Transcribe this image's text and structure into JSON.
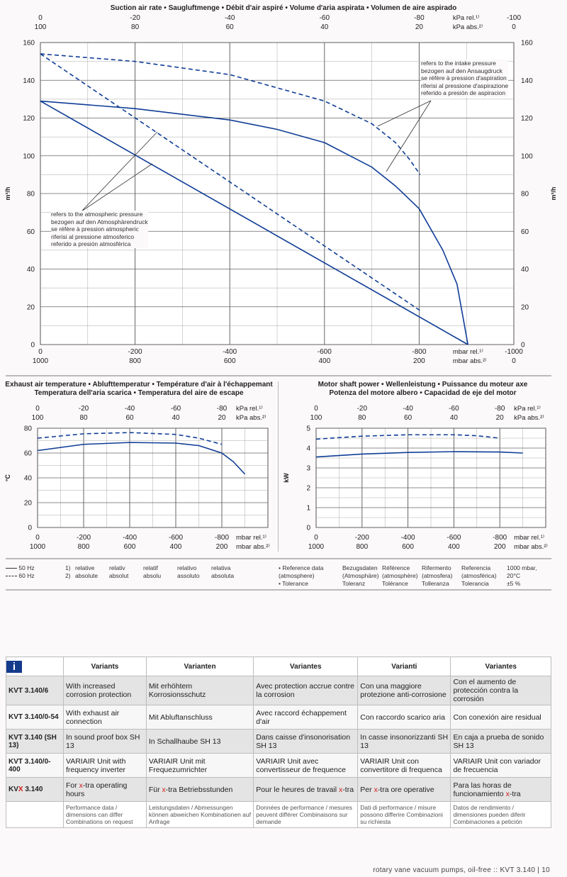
{
  "main_title": "Suction air rate • Saugluftmenge • Débit d'air aspiré • Volume d'aria aspirata • Volumen de aire aspirado",
  "temp_title": [
    "Exhaust air temperature • Ablufttemperatur • Température d'air à l'échappemant",
    "Temperatura dell'aria scarica • Temperatura del aire de escape"
  ],
  "power_title": [
    "Motor shaft power • Wellenleistung • Puissance du moteur axe",
    "Potenza del motore albero • Capacidad de eje del motor"
  ],
  "colors": {
    "curve": "#0f3d96",
    "grid": "#a9a9a9"
  },
  "chart_data": [
    {
      "id": "suction",
      "type": "line",
      "ylabel": "m³/h",
      "xlim": [
        0,
        -1000
      ],
      "ylim": [
        0,
        160
      ],
      "yticks": [
        0,
        20,
        40,
        60,
        80,
        100,
        120,
        140,
        160
      ],
      "x_bottom_ticks": {
        "rel": [
          "0",
          "-200",
          "-400",
          "-600",
          "-800",
          "-1000"
        ],
        "abs": [
          "1000",
          "800",
          "600",
          "400",
          "200",
          "0"
        ],
        "rel_unit": "mbar rel.¹⁾",
        "abs_unit": "mbar abs.²⁾"
      },
      "x_top_ticks": {
        "rel": [
          "0",
          "-20",
          "-40",
          "-60",
          "-80",
          "-100"
        ],
        "abs": [
          "100",
          "80",
          "60",
          "40",
          "20",
          "0"
        ],
        "rel_unit": "kPa rel.¹⁾",
        "abs_unit": "kPa abs.²⁾"
      },
      "grid": true,
      "series": [
        {
          "freq": "50 Hz",
          "style": "solid",
          "ref": "intake",
          "x": [
            0,
            -200,
            -400,
            -500,
            -600,
            -700,
            -750,
            -800,
            -850,
            -880,
            -903
          ],
          "y": [
            129,
            125,
            119,
            114,
            107,
            94,
            84,
            72,
            50,
            32,
            0
          ]
        },
        {
          "freq": "50 Hz",
          "style": "solid",
          "ref": "atmospheric",
          "x": [
            0,
            -903
          ],
          "y": [
            129,
            0
          ]
        },
        {
          "freq": "60 Hz",
          "style": "dashed",
          "ref": "intake",
          "x": [
            0,
            -200,
            -400,
            -600,
            -700,
            -750,
            -780,
            -802
          ],
          "y": [
            154,
            150,
            143,
            129,
            117,
            107,
            98,
            90
          ]
        },
        {
          "freq": "60 Hz",
          "style": "dashed",
          "ref": "atmospheric",
          "x": [
            0,
            -802
          ],
          "y": [
            154,
            18
          ]
        }
      ],
      "annotations": {
        "intake": [
          "refers to the intake pressure",
          "bezogen auf den Ansaugdruck",
          "se réfère à pression d'aspiration",
          "riferisi al pressione d'aspirazione",
          "referido a presión de aspiracion"
        ],
        "atmospheric": [
          "refers to the atmospheric pressure",
          "bezogen auf den Atmosphärendruck",
          "se réfère à pression atmospheric",
          "riferisi al pressione atmosferico",
          "referido a presión atmosférica"
        ]
      }
    },
    {
      "id": "temperature",
      "type": "line",
      "ylabel": "°C",
      "xlim": [
        0,
        -1000
      ],
      "ylim": [
        0,
        80
      ],
      "yticks": [
        0,
        20,
        40,
        60,
        80
      ],
      "x_bottom_ticks": {
        "rel": [
          "0",
          "-200",
          "-400",
          "-600",
          "-800"
        ],
        "abs": [
          "1000",
          "800",
          "600",
          "400",
          "200"
        ],
        "rel_unit": "mbar rel.¹⁾",
        "abs_unit": "mbar abs.²⁾"
      },
      "x_top_ticks": {
        "rel": [
          "0",
          "-20",
          "-40",
          "-60",
          "-80"
        ],
        "abs": [
          "100",
          "80",
          "60",
          "40",
          "20"
        ],
        "rel_unit": "kPa rel.¹⁾",
        "abs_unit": "kPa abs.²⁾"
      },
      "grid": true,
      "series": [
        {
          "freq": "50 Hz",
          "style": "solid",
          "x": [
            0,
            -200,
            -400,
            -600,
            -700,
            -800,
            -850,
            -900
          ],
          "y": [
            62,
            67,
            68.5,
            68,
            66,
            60,
            53,
            43
          ]
        },
        {
          "freq": "60 Hz",
          "style": "dashed",
          "x": [
            0,
            -200,
            -400,
            -600,
            -700,
            -800
          ],
          "y": [
            72,
            75.5,
            76.5,
            75,
            72,
            67
          ]
        }
      ]
    },
    {
      "id": "power",
      "type": "line",
      "ylabel": "kW",
      "xlim": [
        0,
        -1000
      ],
      "ylim": [
        0,
        5
      ],
      "yticks": [
        0,
        1,
        2,
        3,
        4,
        5
      ],
      "x_bottom_ticks": {
        "rel": [
          "0",
          "-200",
          "-400",
          "-600",
          "-800"
        ],
        "abs": [
          "1000",
          "800",
          "600",
          "400",
          "200"
        ],
        "rel_unit": "mbar rel.¹⁾",
        "abs_unit": "mbar abs.²⁾"
      },
      "x_top_ticks": {
        "rel": [
          "0",
          "-20",
          "-40",
          "-60",
          "-80"
        ],
        "abs": [
          "100",
          "80",
          "60",
          "40",
          "20"
        ],
        "rel_unit": "kPa rel.¹⁾",
        "abs_unit": "kPa abs.²⁾"
      },
      "grid": true,
      "series": [
        {
          "freq": "50 Hz",
          "style": "solid",
          "x": [
            0,
            -200,
            -400,
            -600,
            -800,
            -900
          ],
          "y": [
            3.55,
            3.7,
            3.78,
            3.82,
            3.8,
            3.75
          ]
        },
        {
          "freq": "60 Hz",
          "style": "dashed",
          "x": [
            0,
            -200,
            -400,
            -600,
            -700,
            -800
          ],
          "y": [
            4.45,
            4.6,
            4.67,
            4.67,
            4.62,
            4.5
          ]
        }
      ]
    }
  ],
  "legend": {
    "solid": "50 Hz",
    "dashed": "60 Hz",
    "notes": [
      [
        "1)",
        "relative",
        "relativ",
        "relatif",
        "relativo",
        "relativa"
      ],
      [
        "2)",
        "absolute",
        "absolut",
        "absolu",
        "assoluto",
        "absoluta"
      ]
    ],
    "reference": [
      [
        "• Reference data",
        "(atmosphere)",
        "• Tolerance"
      ],
      [
        "Bezugsdaten",
        "(Atmosphäre)",
        "Toleranz"
      ],
      [
        "Référence",
        "(atmosphère)",
        "Tolérance"
      ],
      [
        "Rifermento",
        "(atmosfera)",
        "Tolleranza"
      ],
      [
        "Referencia",
        "(atmosférica)",
        "Tolerancia"
      ],
      [
        "1000 mbar,",
        "20°C",
        "±5 %"
      ]
    ]
  },
  "variants": {
    "icon": "i",
    "headers": [
      "Variants",
      "Varianten",
      "Variantes",
      "Varianti",
      "Variantes"
    ],
    "rows": [
      {
        "model": [
          "KVT 3.140/6",
          "",
          ""
        ],
        "cells": [
          [
            "With increased corrosion protection",
            "",
            ""
          ],
          [
            "Mit erhöhtem Korrosionsschutz",
            "",
            ""
          ],
          [
            "Avec protection accrue contre la corrosion",
            "",
            ""
          ],
          [
            "Con una maggiore protezione anti-corrosione",
            "",
            ""
          ],
          [
            "Con el aumento de protección contra la corrosión",
            "",
            ""
          ]
        ]
      },
      {
        "model": [
          "KVT 3.140/0-54",
          "",
          ""
        ],
        "cells": [
          [
            "With exhaust air connection",
            "",
            ""
          ],
          [
            "Mit Abluftanschluss",
            "",
            ""
          ],
          [
            "Avec raccord échappement d'air",
            "",
            ""
          ],
          [
            "Con raccordo scarico aria",
            "",
            ""
          ],
          [
            "Con conexión aire residual",
            "",
            ""
          ]
        ]
      },
      {
        "model": [
          "KVT 3.140 (SH 13)",
          "",
          ""
        ],
        "cells": [
          [
            "In sound proof box SH 13",
            "",
            ""
          ],
          [
            "In Schallhaube SH 13",
            "",
            ""
          ],
          [
            "Dans caisse d'insonorisation SH 13",
            "",
            ""
          ],
          [
            "In casse insonorizzanti SH 13",
            "",
            ""
          ],
          [
            "En caja a prueba de sonido SH 13",
            "",
            ""
          ]
        ]
      },
      {
        "model": [
          "KVT 3.140/0-400",
          "",
          ""
        ],
        "cells": [
          [
            "VARIAIR Unit with frequency inverter",
            "",
            ""
          ],
          [
            "VARIAIR Unit mit Frequezumrichter",
            "",
            ""
          ],
          [
            "VARIAIR Unit avec convertisseur de frequence",
            "",
            ""
          ],
          [
            "VARIAIR Unit con convertitore di frequenca",
            "",
            ""
          ],
          [
            "VARIAIR Unit con variador de frecuencia",
            "",
            ""
          ]
        ]
      },
      {
        "model": [
          "KV",
          "X",
          " 3.140"
        ],
        "cells": [
          [
            "For ",
            "x",
            "-tra operating hours"
          ],
          [
            "Für ",
            "x",
            "-tra Betriebsstunden"
          ],
          [
            "Pour le heures de travail ",
            "x",
            "-tra"
          ],
          [
            "Per ",
            "x",
            "-tra ore operative"
          ],
          [
            "Para las horas de funcionamiento ",
            "x",
            "-tra"
          ]
        ]
      }
    ],
    "notes": [
      "Performance data / dimensions can differ Combinations on request",
      "Leistungsdaten / Abmessungen können abweichen Kombinationen auf Anfrage",
      "Données de performance / mesures peuvent différer Combinaisons sur demande",
      "Dati di performance / misure possono differire Combinazioni su richiesta",
      "Datos de rendimiento / dimensiones pueden diferir Combinaciones a petición"
    ]
  },
  "footer": "rotary vane vacuum pumps, oil-free :: KVT 3.140  |  10"
}
